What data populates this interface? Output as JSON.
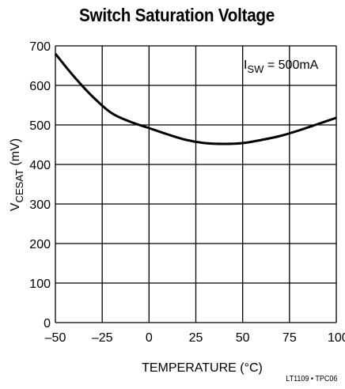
{
  "chart_data": {
    "type": "line",
    "title": "Switch Saturation Voltage",
    "xlabel": "TEMPERATURE (°C)",
    "ylabel_main": "V",
    "ylabel_sub": "CESAT",
    "ylabel_unit": " (mV)",
    "xlim": [
      -50,
      100
    ],
    "ylim": [
      0,
      700
    ],
    "x_ticks": [
      -50,
      -25,
      0,
      25,
      50,
      75,
      100
    ],
    "x_tick_labels": [
      "–50",
      "–25",
      "0",
      "25",
      "50",
      "75",
      "100"
    ],
    "y_ticks": [
      0,
      100,
      200,
      300,
      400,
      500,
      600,
      700
    ],
    "y_tick_labels": [
      "0",
      "100",
      "200",
      "300",
      "400",
      "500",
      "600",
      "700"
    ],
    "grid": true,
    "annotation": {
      "main": "I",
      "sub": "SW",
      "rest": " = 500mA",
      "placement": "top-right"
    },
    "series": [
      {
        "x": [
          -50,
          -40,
          -30,
          -20,
          -10,
          0,
          10,
          20,
          30,
          40,
          50,
          60,
          70,
          80,
          90,
          100
        ],
        "values": [
          680,
          622,
          571,
          530,
          508,
          492,
          476,
          462,
          454,
          452,
          454,
          462,
          472,
          486,
          502,
          518
        ]
      }
    ]
  },
  "footer": "LT1109 • TPC06",
  "colors": {
    "line": "#000000",
    "grid": "#000000",
    "background": "#ffffff"
  }
}
